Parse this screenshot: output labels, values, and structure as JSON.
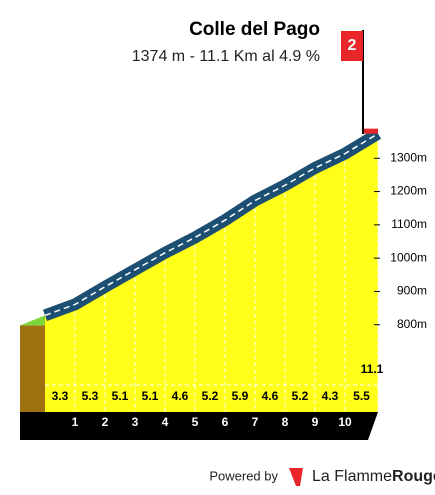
{
  "chart_data": {
    "type": "profile",
    "title": "Colle del Pago",
    "subtitle": "1374 m - 11.1 Km al 4.9 %",
    "climb_number": "2",
    "x": [
      0,
      1,
      2,
      3,
      4,
      5,
      6,
      7,
      8,
      9,
      10,
      11.1
    ],
    "series": [
      {
        "color": "#ffff1a",
        "values": [
          828,
          861,
          914,
          965,
          1016,
          1062,
          1114,
          1173,
          1219,
          1271,
          1314,
          1374
        ]
      }
    ],
    "gradients": [
      3.3,
      5.3,
      5.1,
      5.1,
      4.6,
      5.2,
      5.9,
      4.6,
      5.2,
      4.3,
      5.5
    ],
    "xlim": [
      0,
      11.1
    ],
    "xticks": [
      1,
      2,
      3,
      4,
      5,
      6,
      7,
      8,
      9,
      10,
      11.1
    ],
    "ylim": [
      700,
      1400
    ],
    "yticks": [
      {
        "value": 800,
        "label": "800m"
      },
      {
        "value": 900,
        "label": "900m"
      },
      {
        "value": 1000,
        "label": "1000m"
      },
      {
        "value": 1100,
        "label": "1100m"
      },
      {
        "value": 1200,
        "label": "1200m"
      },
      {
        "value": 1300,
        "label": "1300m"
      }
    ],
    "road_color": "#1d4f73",
    "footer": {
      "powered": "Powered by",
      "brand": "La Flamme",
      "brand_bold": "Rouge"
    }
  }
}
